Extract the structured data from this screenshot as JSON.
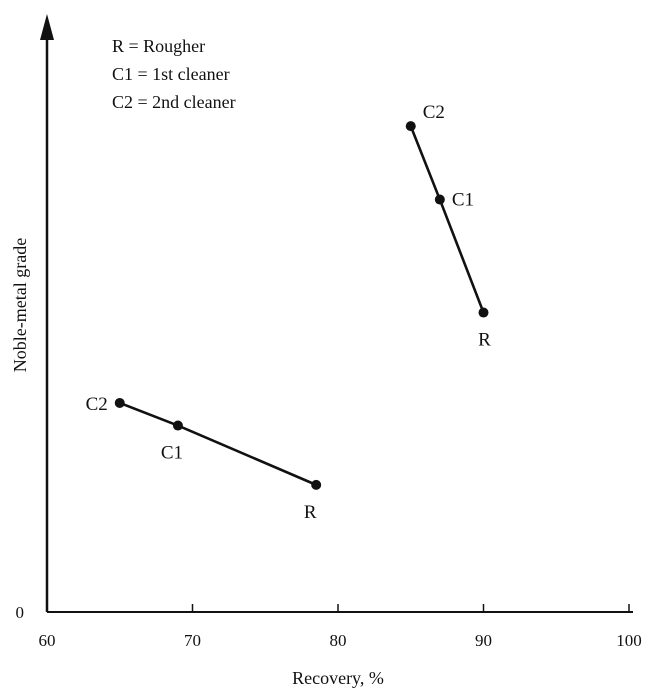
{
  "chart_data": {
    "type": "line",
    "title": "",
    "xlabel": "Recovery, %",
    "ylabel": "Noble-metal grade",
    "xlim": [
      60,
      100
    ],
    "ylim": [
      0,
      100
    ],
    "x_ticks": [
      "60",
      "70",
      "80",
      "90",
      "100"
    ],
    "y_ticks": [
      "0"
    ],
    "y_values_note_units": "relative grade (axis unlabeled except 0)",
    "legend": {
      "placement": "top-left",
      "entries": [
        "R  = Rougher",
        "C1 = 1st cleaner",
        "C2 = 2nd cleaner"
      ]
    },
    "series": [
      {
        "points": [
          {
            "label": "C2",
            "x": 65,
            "y": 37
          },
          {
            "label": "C1",
            "x": 69,
            "y": 33
          },
          {
            "label": "R",
            "x": 78.5,
            "y": 22.5
          }
        ]
      },
      {
        "points": [
          {
            "label": "C2",
            "x": 85,
            "y": 86
          },
          {
            "label": "C1",
            "x": 87,
            "y": 73
          },
          {
            "label": "R",
            "x": 90,
            "y": 53
          }
        ]
      }
    ]
  }
}
